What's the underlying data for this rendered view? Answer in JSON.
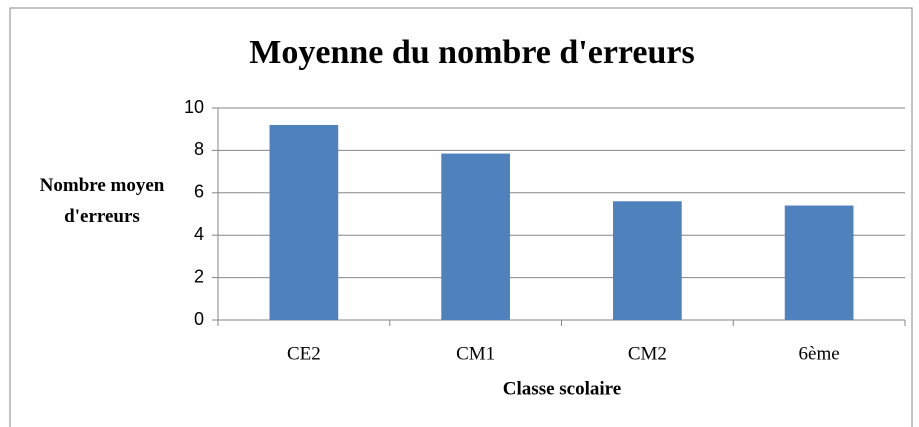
{
  "chart_data": {
    "type": "bar",
    "title": "Moyenne du nombre d'erreurs",
    "x_label": "Classe scolaire",
    "y_label": "Nombre moyen d'erreurs",
    "categories": [
      "CE2",
      "CM1",
      "CM2",
      "6ème"
    ],
    "values": [
      9.2,
      7.85,
      5.6,
      5.4
    ],
    "color": "#4f81bd",
    "ylim": [
      0,
      10
    ],
    "yticks": [
      0,
      2,
      4,
      6,
      8,
      10
    ],
    "grid": true
  }
}
